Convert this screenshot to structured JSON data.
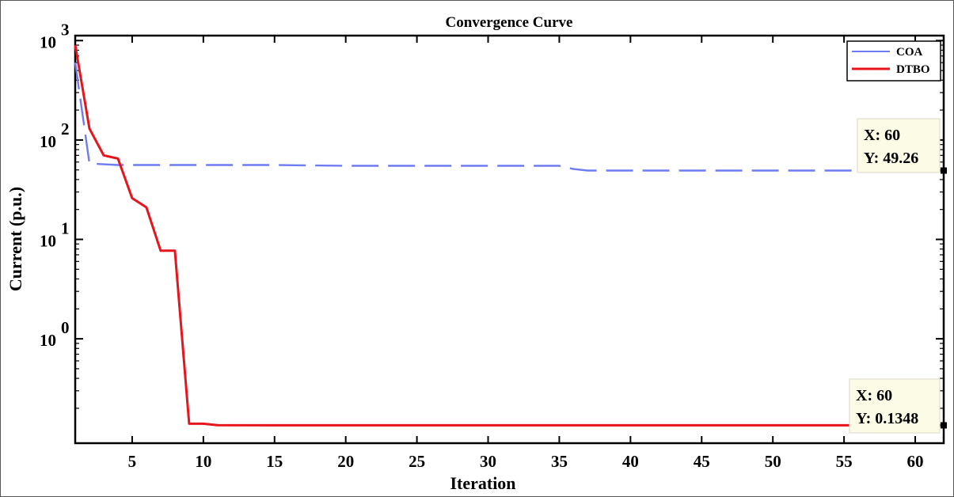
{
  "chart_data": {
    "type": "line",
    "title": "Convergence Curve",
    "xlabel": "Iteration",
    "ylabel": "Current (p.u.)",
    "xlim": [
      1,
      62
    ],
    "ylim_log10": [
      -1.05,
      3.05
    ],
    "yscale": "log",
    "x_ticks": [
      5,
      10,
      15,
      20,
      25,
      30,
      35,
      40,
      45,
      50,
      55,
      60
    ],
    "y_ticks": [
      {
        "base": "10",
        "exp": "0",
        "log": 0
      },
      {
        "base": "10",
        "exp": "1",
        "log": 1
      },
      {
        "base": "10",
        "exp": "2",
        "log": 2
      },
      {
        "base": "10",
        "exp": "3",
        "log": 3
      }
    ],
    "grid": false,
    "legend_position": "top-right",
    "series": [
      {
        "name": "COA",
        "color": "#6f7bf0",
        "style": "dashed",
        "x": [
          1,
          2,
          3,
          4,
          5,
          10,
          15,
          20,
          25,
          30,
          35,
          36,
          37,
          40,
          45,
          50,
          55,
          60,
          62
        ],
        "y": [
          600,
          58,
          57,
          56,
          56,
          56,
          56,
          55,
          55,
          55,
          55,
          51,
          49.26,
          49.26,
          49.26,
          49.26,
          49.26,
          49.26,
          49.26
        ]
      },
      {
        "name": "DTBO",
        "color": "#e8141c",
        "style": "solid",
        "x": [
          1,
          2,
          3,
          4,
          5,
          6,
          7,
          8,
          9,
          10,
          11,
          15,
          20,
          30,
          40,
          50,
          60,
          62
        ],
        "y": [
          900,
          130,
          70,
          65,
          26,
          21,
          7.7,
          7.7,
          0.14,
          0.14,
          0.135,
          0.1348,
          0.1348,
          0.1348,
          0.1348,
          0.1348,
          0.1348,
          0.1348
        ]
      }
    ],
    "annotations": [
      {
        "x_text": "X: 60",
        "y_text": "Y: 49.26",
        "x": 62,
        "y": 49.26
      },
      {
        "x_text": "X: 60",
        "y_text": "Y: 0.1348",
        "x": 62,
        "y": 0.1348
      }
    ]
  }
}
